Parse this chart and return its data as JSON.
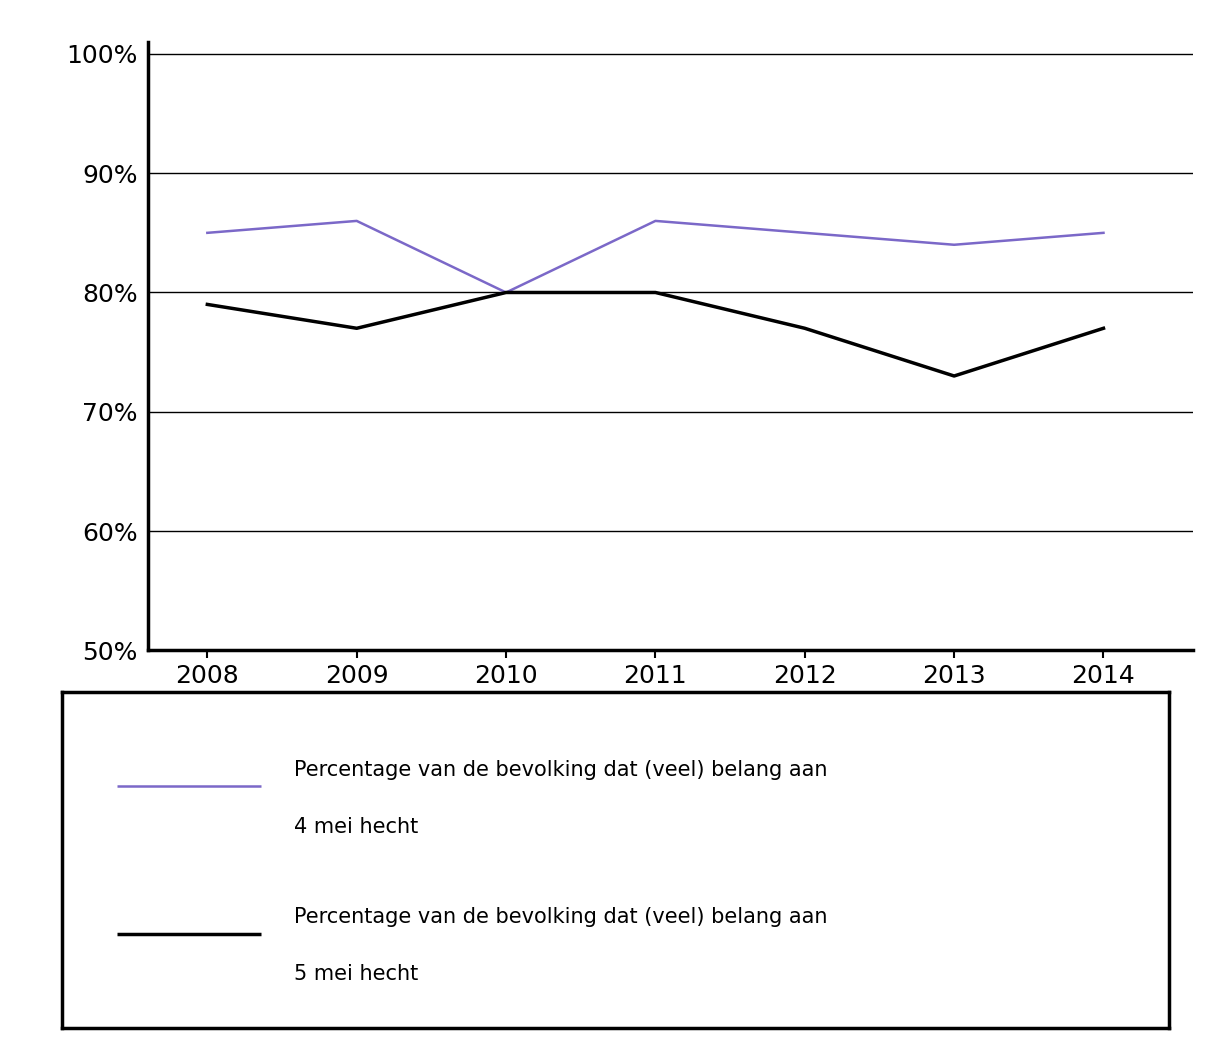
{
  "years": [
    2008,
    2009,
    2010,
    2011,
    2012,
    2013,
    2014
  ],
  "line_4mei": [
    85,
    86,
    80,
    86,
    85,
    84,
    85
  ],
  "line_5mei": [
    79,
    77,
    80,
    80,
    77,
    73,
    77
  ],
  "color_4mei": "#7B68C8",
  "color_5mei": "#000000",
  "linewidth_4mei": 1.8,
  "linewidth_5mei": 2.5,
  "ylim_min": 50,
  "ylim_max": 101,
  "yticks": [
    50,
    60,
    70,
    80,
    90,
    100
  ],
  "ytick_labels": [
    "50%",
    "60%",
    "70%",
    "80%",
    "90%",
    "100%"
  ],
  "xtick_labels": [
    "2008",
    "2009",
    "2010",
    "2011",
    "2012",
    "2013",
    "2014"
  ],
  "legend_label_4mei": "Percentage van de bevolking dat (veel) belang aan\n4 mei hecht",
  "legend_label_5mei": "Percentage van de bevolking dat (veel) belang aan\n5 mei hecht",
  "bg_color": "#ffffff",
  "grid_color": "#000000",
  "spine_color": "#000000",
  "spine_linewidth": 2.5,
  "legend_fontsize": 15,
  "tick_fontsize": 18
}
